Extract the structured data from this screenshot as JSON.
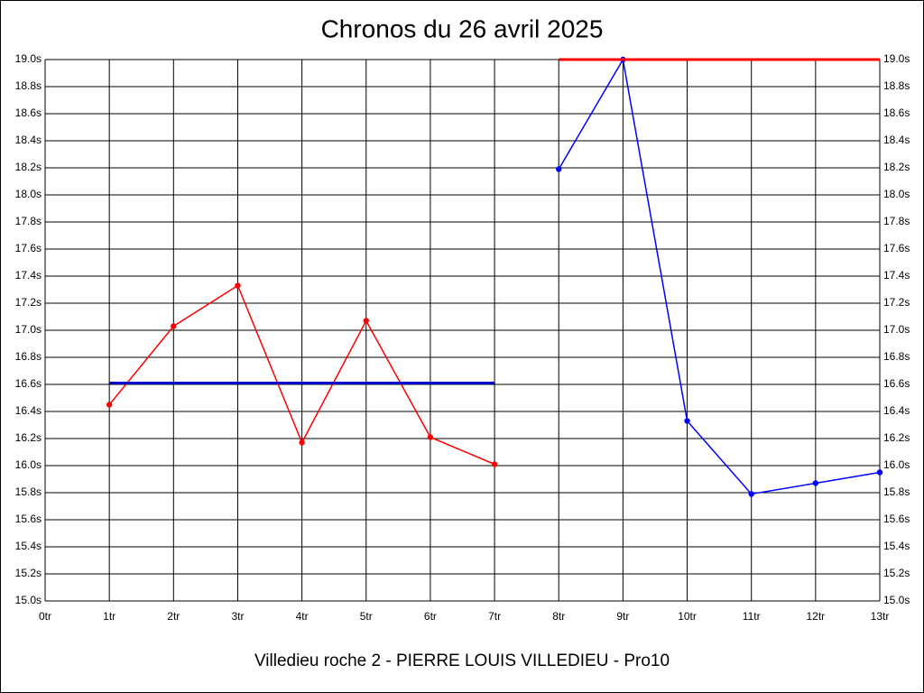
{
  "chart_data": {
    "type": "line",
    "title": "Chronos du 26 avril 2025",
    "xlabel": "Villedieu roche 2 - PIERRE LOUIS VILLEDIEU - Pro10",
    "xlim": [
      0,
      13
    ],
    "xticks": [
      {
        "value": 0,
        "label": "0tr"
      },
      {
        "value": 1,
        "label": "1tr"
      },
      {
        "value": 2,
        "label": "2tr"
      },
      {
        "value": 3,
        "label": "3tr"
      },
      {
        "value": 4,
        "label": "4tr"
      },
      {
        "value": 5,
        "label": "5tr"
      },
      {
        "value": 6,
        "label": "6tr"
      },
      {
        "value": 7,
        "label": "7tr"
      },
      {
        "value": 8,
        "label": "8tr"
      },
      {
        "value": 9,
        "label": "9tr"
      },
      {
        "value": 10,
        "label": "10tr"
      },
      {
        "value": 11,
        "label": "11tr"
      },
      {
        "value": 12,
        "label": "12tr"
      },
      {
        "value": 13,
        "label": "13tr"
      }
    ],
    "ylim": [
      15.0,
      19.0
    ],
    "yticks": [
      {
        "value": 15.0,
        "label": "15.0s"
      },
      {
        "value": 15.2,
        "label": "15.2s"
      },
      {
        "value": 15.4,
        "label": "15.4s"
      },
      {
        "value": 15.6,
        "label": "15.6s"
      },
      {
        "value": 15.8,
        "label": "15.8s"
      },
      {
        "value": 16.0,
        "label": "16.0s"
      },
      {
        "value": 16.2,
        "label": "16.2s"
      },
      {
        "value": 16.4,
        "label": "16.4s"
      },
      {
        "value": 16.6,
        "label": "16.6s"
      },
      {
        "value": 16.8,
        "label": "16.8s"
      },
      {
        "value": 17.0,
        "label": "17.0s"
      },
      {
        "value": 17.2,
        "label": "17.2s"
      },
      {
        "value": 17.4,
        "label": "17.4s"
      },
      {
        "value": 17.6,
        "label": "17.6s"
      },
      {
        "value": 17.8,
        "label": "17.8s"
      },
      {
        "value": 18.0,
        "label": "18.0s"
      },
      {
        "value": 18.2,
        "label": "18.2s"
      },
      {
        "value": 18.4,
        "label": "18.4s"
      },
      {
        "value": 18.6,
        "label": "18.6s"
      },
      {
        "value": 18.8,
        "label": "18.8s"
      },
      {
        "value": 19.0,
        "label": "19.0s"
      }
    ],
    "grid": true,
    "series": [
      {
        "color": "#ff0000",
        "x": [
          1,
          2,
          3,
          4,
          5,
          6,
          7
        ],
        "values": [
          16.45,
          17.03,
          17.33,
          16.17,
          17.07,
          16.21,
          16.01
        ]
      },
      {
        "color": "#0000ff",
        "x": [
          8,
          9,
          10,
          11,
          12,
          13
        ],
        "values": [
          18.19,
          19.0,
          16.33,
          15.79,
          15.87,
          15.95
        ]
      }
    ],
    "reference_lines": [
      {
        "color": "#0000cc",
        "x": [
          1,
          7
        ],
        "value": 16.61
      },
      {
        "color": "#ff0000",
        "x": [
          8,
          13
        ],
        "value": 19.0
      }
    ]
  }
}
